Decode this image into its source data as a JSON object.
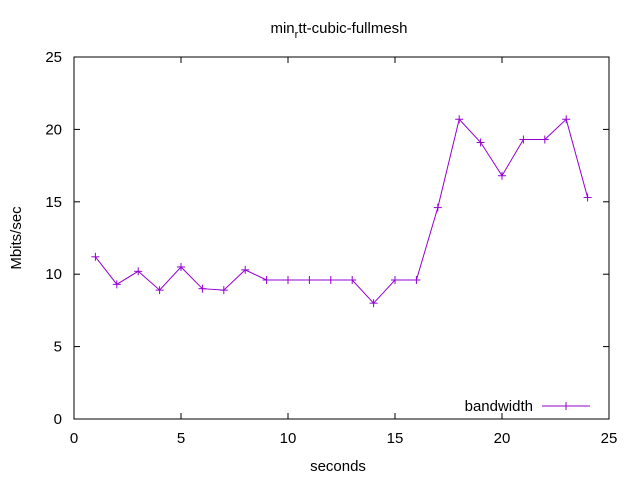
{
  "chart_data": {
    "type": "line",
    "title": {
      "prefix": "min",
      "subscript": "r",
      "suffix": "tt-cubic-fullmesh"
    },
    "xlabel": "seconds",
    "ylabel": "Mbits/sec",
    "xlim": [
      0,
      25
    ],
    "ylim": [
      0,
      25
    ],
    "xticks": [
      "0",
      "5",
      "10",
      "15",
      "20",
      "25"
    ],
    "yticks": [
      "0",
      "5",
      "10",
      "15",
      "20",
      "25"
    ],
    "grid": false,
    "legend_position": "bottom-right",
    "series": [
      {
        "name": "bandwidth",
        "color": "#9400d3",
        "marker": "plus",
        "x": [
          1,
          2,
          3,
          4,
          5,
          6,
          7,
          8,
          9,
          10,
          11,
          12,
          13,
          14,
          15,
          16,
          17,
          18,
          19,
          20,
          21,
          22,
          23,
          24
        ],
        "y": [
          11.2,
          9.3,
          10.2,
          8.9,
          10.5,
          9.0,
          8.9,
          10.3,
          9.6,
          9.6,
          9.6,
          9.6,
          9.6,
          8.0,
          9.6,
          9.6,
          14.6,
          20.7,
          19.1,
          16.8,
          19.3,
          19.3,
          20.7,
          15.3
        ]
      }
    ]
  }
}
